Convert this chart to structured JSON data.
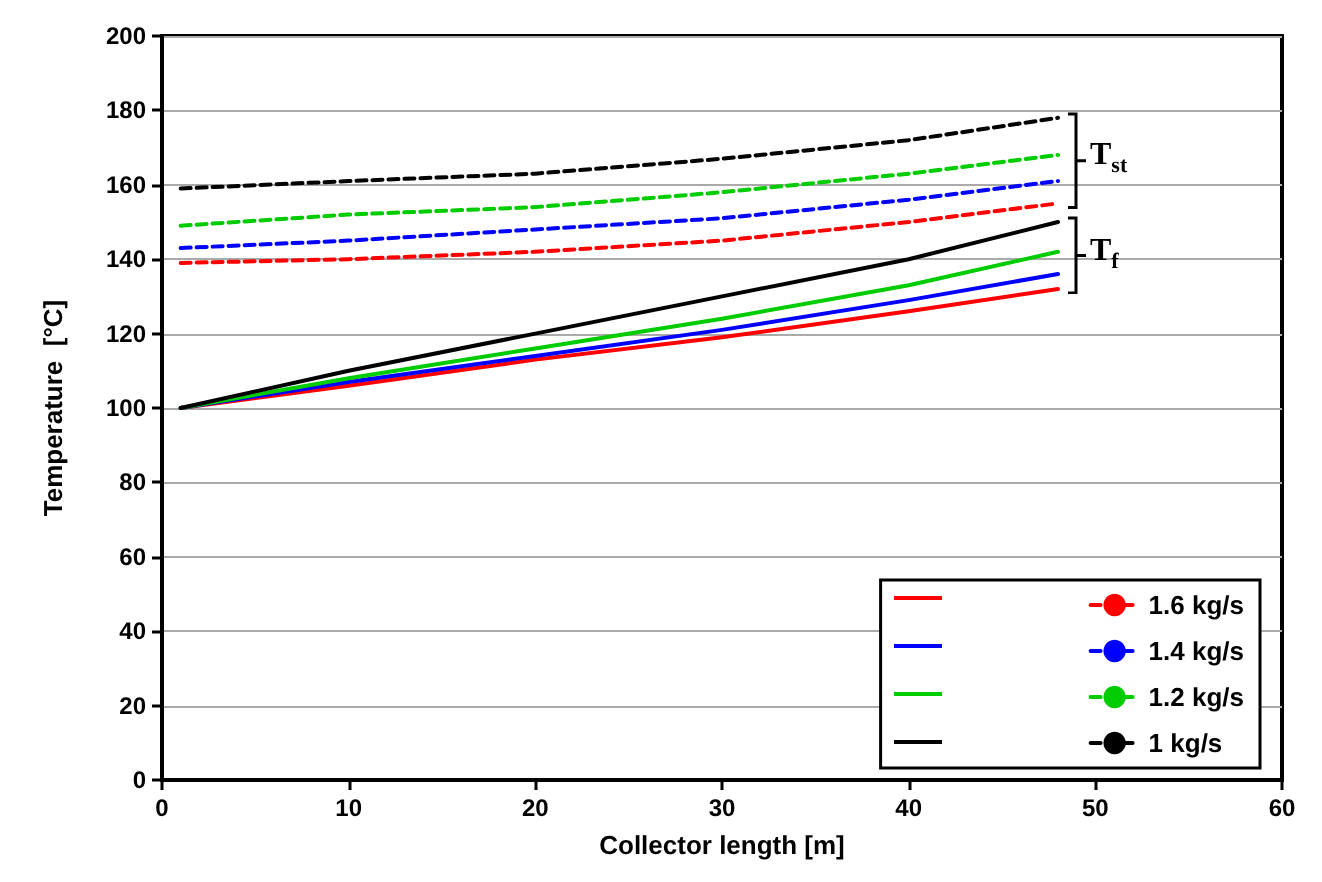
{
  "chart_data": {
    "type": "line",
    "xlabel": "Collector length [m]",
    "ylabel": "Temperature  [°C]",
    "xlim": [
      0,
      60
    ],
    "xticks": [
      0,
      10,
      20,
      30,
      40,
      50,
      60
    ],
    "ylim": [
      0,
      200
    ],
    "yticks": [
      0,
      20,
      40,
      60,
      80,
      100,
      120,
      140,
      160,
      180,
      200
    ],
    "grid": "y",
    "legend": "bottom right",
    "marker": "none",
    "x": [
      1,
      10,
      20,
      30,
      40,
      48
    ],
    "series": [
      {
        "color": "#ff0000",
        "line_style": "solid",
        "values": [
          100,
          106,
          113,
          119,
          126,
          132
        ]
      },
      {
        "name": "1.6 kg/s",
        "color": "#ff0000",
        "line_style": "dashed",
        "values": [
          139,
          140,
          142,
          145,
          150,
          155
        ]
      },
      {
        "color": "#0000ff",
        "line_style": "solid",
        "values": [
          100,
          107,
          114,
          121,
          129,
          136
        ]
      },
      {
        "name": "1.4 kg/s",
        "color": "#0000ff",
        "line_style": "dashed",
        "values": [
          143,
          145,
          148,
          151,
          156,
          161
        ]
      },
      {
        "color": "#00cc00",
        "line_style": "solid",
        "values": [
          100,
          108,
          116,
          124,
          133,
          142
        ]
      },
      {
        "name": "1.2 kg/s",
        "color": "#00cc00",
        "line_style": "dashed",
        "values": [
          149,
          152,
          154,
          158,
          163,
          168
        ]
      },
      {
        "color": "#000000",
        "line_style": "solid",
        "values": [
          100,
          110,
          120,
          130,
          140,
          150
        ]
      },
      {
        "name": "1 kg/s",
        "color": "#000000",
        "line_style": "dashed",
        "values": [
          159,
          161,
          163,
          167,
          172,
          178
        ]
      }
    ],
    "annotations": [
      "T$_{st}$",
      "T$_{f}$"
    ]
  }
}
